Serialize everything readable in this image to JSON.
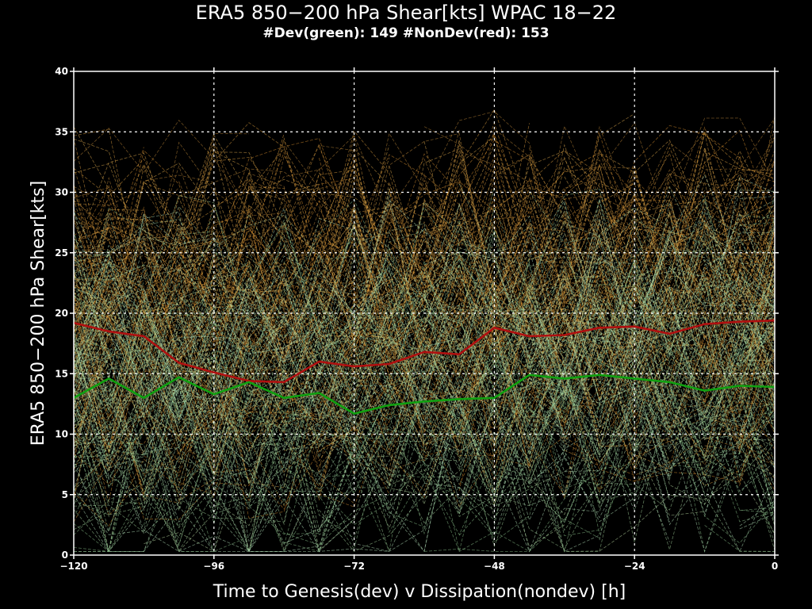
{
  "header": {
    "title": "ERA5 850−200 hPa Shear[kts] WPAC 18−22",
    "subtitle": "#Dev(green): 149 #NonDev(red): 153"
  },
  "chart_data": {
    "type": "line",
    "title": "ERA5 850−200 hPa Shear[kts] WPAC 18−22",
    "subtitle": "#Dev(green): 149 #NonDev(red): 153",
    "xlabel": "Time to Genesis(dev) v Dissipation(nondev) [h]",
    "ylabel": "ERA5 850−200 hPa Shear[kts]",
    "xlim": [
      -120,
      0
    ],
    "ylim": [
      0,
      40
    ],
    "xticks": [
      -120,
      -96,
      -72,
      -48,
      -24,
      0
    ],
    "yticks": [
      0,
      5,
      10,
      15,
      20,
      25,
      30,
      35,
      40
    ],
    "grid": true,
    "x": [
      -120,
      -114,
      -108,
      -102,
      -96,
      -90,
      -84,
      -78,
      -72,
      -66,
      -60,
      -54,
      -48,
      -42,
      -36,
      -30,
      -24,
      -18,
      -12,
      -6,
      0
    ],
    "series": [
      {
        "name": "NonDev",
        "color": "#b01010",
        "values": [
          19.2,
          18.5,
          18.1,
          15.9,
          15.1,
          14.4,
          14.3,
          16.0,
          15.6,
          15.8,
          16.8,
          16.6,
          18.8,
          18.1,
          18.2,
          18.8,
          18.9,
          18.3,
          19.1,
          19.3,
          19.4
        ]
      },
      {
        "name": "Dev",
        "color": "#10a010",
        "values": [
          13.0,
          14.6,
          13.0,
          14.7,
          13.3,
          14.3,
          13.0,
          13.4,
          11.7,
          12.4,
          12.7,
          12.9,
          13.0,
          14.9,
          14.6,
          14.9,
          14.6,
          14.3,
          13.6,
          14.0,
          13.9
        ]
      }
    ],
    "background_traces": {
      "dev_count": 149,
      "nondev_count": 153,
      "dev_colors": [
        "#a8d8a0",
        "#90c890",
        "#c0e0a8",
        "#b8e8c0"
      ],
      "nondev_colors": [
        "#e0a040",
        "#d89030",
        "#e8b050",
        "#c08838"
      ]
    }
  }
}
